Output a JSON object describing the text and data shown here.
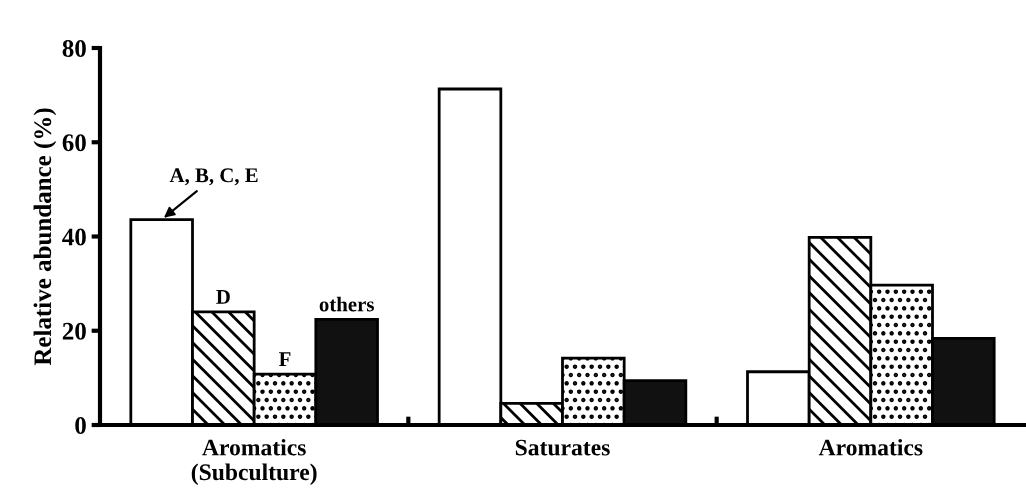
{
  "chart_data": {
    "type": "bar",
    "ylabel": "Relative abundance (%)",
    "categories": [
      "Aromatics\n(Subculture)",
      "Saturates",
      "Aromatics"
    ],
    "series": [
      {
        "name": "A, B, C, E",
        "color": "#ffffff",
        "values": [
          43.6,
          71.3,
          11.3
        ]
      },
      {
        "name": "D",
        "color": "#000000",
        "values": [
          24.0,
          4.6,
          39.8
        ]
      },
      {
        "name": "F",
        "color": "#000000",
        "values": [
          10.8,
          14.2,
          29.7
        ]
      },
      {
        "name": "others",
        "color": "#111111",
        "values": [
          22.4,
          9.4,
          18.4
        ]
      }
    ],
    "ylim": [
      0,
      80
    ],
    "yticks": [
      0,
      20,
      40,
      60,
      80
    ],
    "grid": false,
    "legend": false
  }
}
